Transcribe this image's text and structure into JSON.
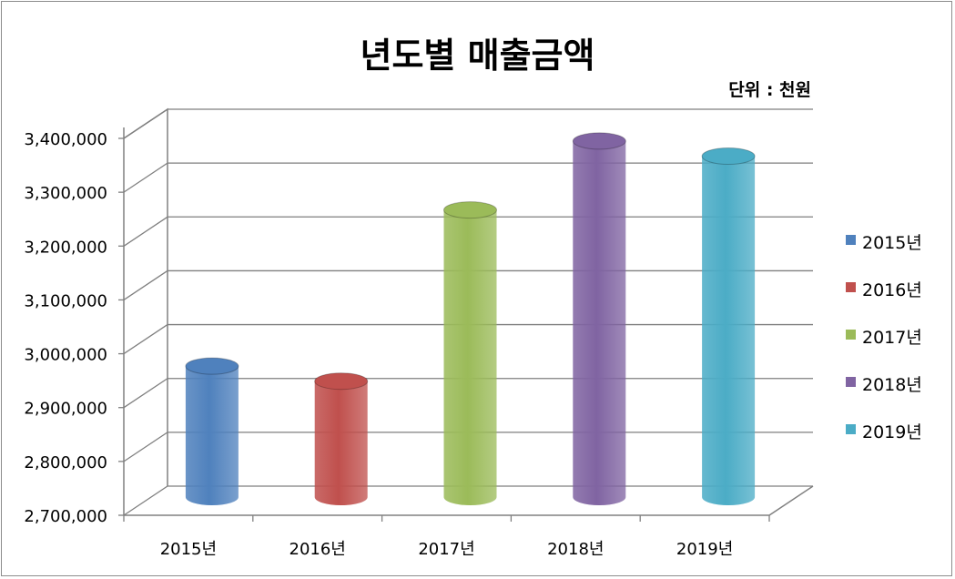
{
  "chart_data": {
    "type": "bar",
    "title": "년도별 매출금액",
    "unit_note": "단위 : 천원",
    "categories": [
      "2015년",
      "2016년",
      "2017년",
      "2018년",
      "2019년"
    ],
    "values": [
      2950000,
      2922000,
      3240000,
      3368000,
      3340000
    ],
    "colors": [
      "#4f81bd",
      "#c0504d",
      "#9bbb59",
      "#8064a2",
      "#4bacc6"
    ],
    "y_ticks": [
      "2,700,000",
      "2,800,000",
      "2,900,000",
      "3,000,000",
      "3,100,000",
      "3,200,000",
      "3,300,000",
      "3,400,000"
    ],
    "ylim": [
      2700000,
      3400000
    ],
    "grid": true,
    "legend_position": "right",
    "legend": [
      "2015년",
      "2016년",
      "2017년",
      "2018년",
      "2019년"
    ],
    "style": "3d-cylinder"
  }
}
